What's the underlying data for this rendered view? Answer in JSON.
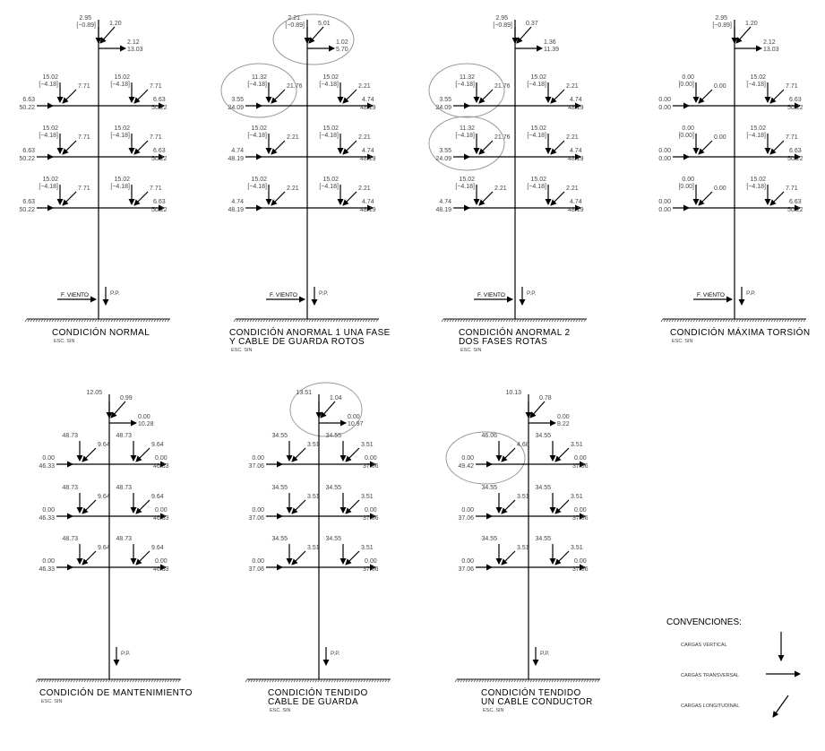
{
  "diagrams": [
    {
      "title_lines": [
        "CONDICIÓN  NORMAL"
      ],
      "esc": "ESC.  SIN",
      "wind": "F.  VIENTO",
      "pp": "P.P.",
      "top": {
        "v": "2.95",
        "vb": "[−0.89]",
        "l": "1.20",
        "t1": "2.12",
        "t2": "13.03"
      },
      "arms": [
        [
          {
            "v": "15.02",
            "vb": "[−4.18]",
            "l": "7.71",
            "t1": "6.63",
            "t2": "50.22"
          },
          {
            "v": "15.02",
            "vb": "[−4.18]",
            "l": "7.71",
            "t1": "6.63",
            "t2": "50.22"
          }
        ],
        [
          {
            "v": "15.02",
            "vb": "[−4.18]",
            "l": "7.71",
            "t1": "6.63",
            "t2": "50.22"
          },
          {
            "v": "15.02",
            "vb": "[−4.18]",
            "l": "7.71",
            "t1": "6.63",
            "t2": "50.22"
          }
        ],
        [
          {
            "v": "15.02",
            "vb": "[−4.18]",
            "l": "7.71",
            "t1": "6.63",
            "t2": "50.22"
          },
          {
            "v": "15.02",
            "vb": "[−4.18]",
            "l": "7.71",
            "t1": "6.63",
            "t2": "50.22"
          }
        ]
      ]
    },
    {
      "title_lines": [
        "CONDICIÓN  ANORMAL  1  UNA  FASE",
        "Y  CABLE  DE  GUARDA  ROTOS"
      ],
      "esc": "ESC.  SIN",
      "wind": "F.  VIENTO",
      "pp": "P.P.",
      "top": {
        "v": "2.21",
        "vb": "[−0.89]",
        "l": "5.01",
        "t1": "1.02",
        "t2": "5.70"
      },
      "arms": [
        [
          {
            "v": "11.32",
            "vb": "[−4.18]",
            "l": "21.76",
            "t1": "3.55",
            "t2": "24.09"
          },
          {
            "v": "15.02",
            "vb": "[−4.18]",
            "l": "2.21",
            "t1": "4.74",
            "t2": "48.19"
          }
        ],
        [
          {
            "v": "15.02",
            "vb": "[−4.18]",
            "l": "2.21",
            "t1": "4.74",
            "t2": "48.19"
          },
          {
            "v": "15.02",
            "vb": "[−4.18]",
            "l": "2.21",
            "t1": "4.74",
            "t2": "48.19"
          }
        ],
        [
          {
            "v": "15.02",
            "vb": "[−4.18]",
            "l": "2.21",
            "t1": "4.74",
            "t2": "48.19"
          },
          {
            "v": "15.02",
            "vb": "[−4.18]",
            "l": "2.21",
            "t1": "4.74",
            "t2": "48.19"
          }
        ]
      ]
    },
    {
      "title_lines": [
        "CONDICIÓN  ANORMAL  2",
        "DOS  FASES  ROTAS"
      ],
      "esc": "ESC.  SIN",
      "wind": "F.  VIENTO",
      "pp": "P.P.",
      "top": {
        "v": "2.95",
        "vb": "[−0.89]",
        "l": "0.37",
        "t1": "1.36",
        "t2": "11.39"
      },
      "arms": [
        [
          {
            "v": "11.32",
            "vb": "[−4.18]",
            "l": "21.76",
            "t1": "3.55",
            "t2": "24.09"
          },
          {
            "v": "15.02",
            "vb": "[−4.18]",
            "l": "2.21",
            "t1": "4.74",
            "t2": "48.19"
          }
        ],
        [
          {
            "v": "11.32",
            "vb": "[−4.18]",
            "l": "21.76",
            "t1": "3.55",
            "t2": "24.09"
          },
          {
            "v": "15.02",
            "vb": "[−4.18]",
            "l": "2.21",
            "t1": "4.74",
            "t2": "48.19"
          }
        ],
        [
          {
            "v": "15.02",
            "vb": "[−4.18]",
            "l": "2.21",
            "t1": "4.74",
            "t2": "48.19"
          },
          {
            "v": "15.02",
            "vb": "[−4.18]",
            "l": "2.21",
            "t1": "4.74",
            "t2": "48.19"
          }
        ]
      ]
    },
    {
      "title_lines": [
        "CONDICIÓN  MÁXIMA  TORSIÓN"
      ],
      "esc": "ESC.  SIN",
      "wind": "F.  VIENTO",
      "pp": "P.P.",
      "top": {
        "v": "2.95",
        "vb": "[−0.89]",
        "l": "1.20",
        "t1": "2.12",
        "t2": "13.03"
      },
      "arms": [
        [
          {
            "v": "0.00",
            "vb": "[0.00]",
            "l": "0.00",
            "t1": "0.00",
            "t2": "0.00"
          },
          {
            "v": "15.02",
            "vb": "[−4.18]",
            "l": "7.71",
            "t1": "6.63",
            "t2": "50.22"
          }
        ],
        [
          {
            "v": "0.00",
            "vb": "[0.00]",
            "l": "0.00",
            "t1": "0.00",
            "t2": "0.00"
          },
          {
            "v": "15.02",
            "vb": "[−4.18]",
            "l": "7.71",
            "t1": "6.63",
            "t2": "50.22"
          }
        ],
        [
          {
            "v": "0.00",
            "vb": "[0.00]",
            "l": "0.00",
            "t1": "0.00",
            "t2": "0.00"
          },
          {
            "v": "15.02",
            "vb": "[−4.18]",
            "l": "7.71",
            "t1": "6.63",
            "t2": "50.22"
          }
        ]
      ]
    },
    {
      "title_lines": [
        "CONDICIÓN  DE  MANTENIMIENTO"
      ],
      "esc": "ESC.  SIN",
      "wind": "",
      "pp": "P.P.",
      "top": {
        "v": "12.05",
        "vb": "",
        "l": "0.99",
        "t1": "0.00",
        "t2": "10.28"
      },
      "arms": [
        [
          {
            "v": "48.73",
            "vb": "",
            "l": "9.64",
            "t1": "0.00",
            "t2": "46.33"
          },
          {
            "v": "48.73",
            "vb": "",
            "l": "9.64",
            "t1": "0.00",
            "t2": "46.33"
          }
        ],
        [
          {
            "v": "48.73",
            "vb": "",
            "l": "9.64",
            "t1": "0.00",
            "t2": "46.33"
          },
          {
            "v": "48.73",
            "vb": "",
            "l": "9.64",
            "t1": "0.00",
            "t2": "46.33"
          }
        ],
        [
          {
            "v": "48.73",
            "vb": "",
            "l": "9.64",
            "t1": "0.00",
            "t2": "46.33"
          },
          {
            "v": "48.73",
            "vb": "",
            "l": "9.64",
            "t1": "0.00",
            "t2": "46.33"
          }
        ]
      ]
    },
    {
      "title_lines": [
        "CONDICIÓN  TENDIDO",
        "CABLE  DE  GUARDA"
      ],
      "esc": "ESC.  SIN",
      "wind": "",
      "pp": "P.P.",
      "top": {
        "v": "13.51",
        "vb": "",
        "l": "1.04",
        "t1": "0.00",
        "t2": "10.97"
      },
      "arms": [
        [
          {
            "v": "34.55",
            "vb": "",
            "l": "3.51",
            "t1": "0.00",
            "t2": "37.06"
          },
          {
            "v": "34.55",
            "vb": "",
            "l": "3.51",
            "t1": "0.00",
            "t2": "37.06"
          }
        ],
        [
          {
            "v": "34.55",
            "vb": "",
            "l": "3.51",
            "t1": "0.00",
            "t2": "37.06"
          },
          {
            "v": "34.55",
            "vb": "",
            "l": "3.51",
            "t1": "0.00",
            "t2": "37.06"
          }
        ],
        [
          {
            "v": "34.55",
            "vb": "",
            "l": "3.51",
            "t1": "0.00",
            "t2": "37.06"
          },
          {
            "v": "34.55",
            "vb": "",
            "l": "3.51",
            "t1": "0.00",
            "t2": "37.06"
          }
        ]
      ]
    },
    {
      "title_lines": [
        "CONDICIÓN  TENDIDO",
        "UN  CABLE  CONDUCTOR"
      ],
      "esc": "ESC.  SIN",
      "wind": "",
      "pp": "P.P.",
      "top": {
        "v": "10.13",
        "vb": "",
        "l": "0.78",
        "t1": "0.00",
        "t2": "8.22"
      },
      "arms": [
        [
          {
            "v": "46.06",
            "vb": "",
            "l": "4.68",
            "t1": "0.00",
            "t2": "49.42"
          },
          {
            "v": "34.55",
            "vb": "",
            "l": "3.51",
            "t1": "0.00",
            "t2": "37.06"
          }
        ],
        [
          {
            "v": "34.55",
            "vb": "",
            "l": "3.51",
            "t1": "0.00",
            "t2": "37.06"
          },
          {
            "v": "34.55",
            "vb": "",
            "l": "3.51",
            "t1": "0.00",
            "t2": "37.06"
          }
        ],
        [
          {
            "v": "34.55",
            "vb": "",
            "l": "3.51",
            "t1": "0.00",
            "t2": "37.06"
          },
          {
            "v": "34.55",
            "vb": "",
            "l": "3.51",
            "t1": "0.00",
            "t2": "37.06"
          }
        ]
      ]
    }
  ],
  "conventions": {
    "title": "CONVENCIONES:",
    "vertical": "CARGAS  VERTICAL",
    "transversal": "CARGAS  TRANSVERSAL",
    "longitudinal": "CARGAS  LONGITUDINAL"
  }
}
